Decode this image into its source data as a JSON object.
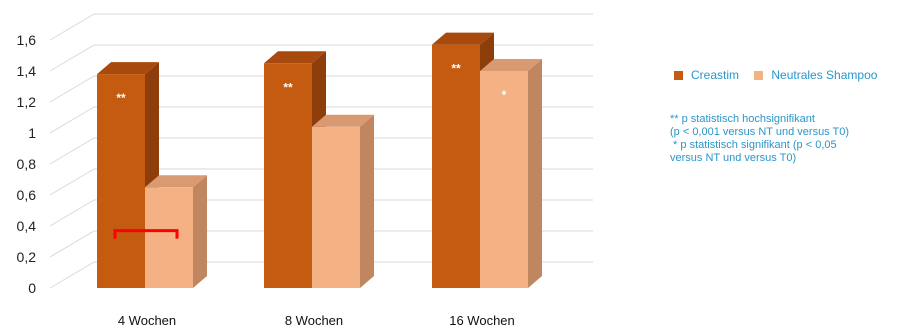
{
  "chart_data": {
    "type": "bar",
    "categories": [
      "4 Wochen",
      "8 Wochen",
      "16 Wochen"
    ],
    "series": [
      {
        "name": "Creastim",
        "values": [
          1.38,
          1.45,
          1.57
        ],
        "labels": [
          "**",
          "**",
          "**"
        ]
      },
      {
        "name": "Neutrales Shampoo",
        "values": [
          0.65,
          1.04,
          1.4
        ],
        "labels": [
          "",
          "",
          "*"
        ]
      }
    ],
    "ytick_labels": [
      "0",
      "0,2",
      "0,4",
      "0,6",
      "0,8",
      "1",
      "1,2",
      "1,4",
      "1,6"
    ],
    "ylim": [
      0,
      1.6
    ],
    "grid": true,
    "legend_position": "right",
    "colors": {
      "Creastim": "#c55a11",
      "Creastim_side": "#8e3e0a",
      "Creastim_top": "#a84a0d",
      "Neutrales Shampoo": "#f4b183",
      "Neutrales Shampoo_side": "#c08660",
      "Neutrales Shampoo_top": "#d99a72",
      "grid": "#d9d9d9",
      "bracket": "#ff0000",
      "text_blue": "#2a96c8"
    },
    "notes": [
      "** p statistisch hochsignifikant",
      "(p < 0,001 versus NT und versus T0)",
      " * p statistisch signifikant (p < 0,05",
      "versus NT und versus T0)"
    ],
    "annotation": {
      "type": "bracket",
      "category": "4 Wochen",
      "value": 0.37
    }
  }
}
